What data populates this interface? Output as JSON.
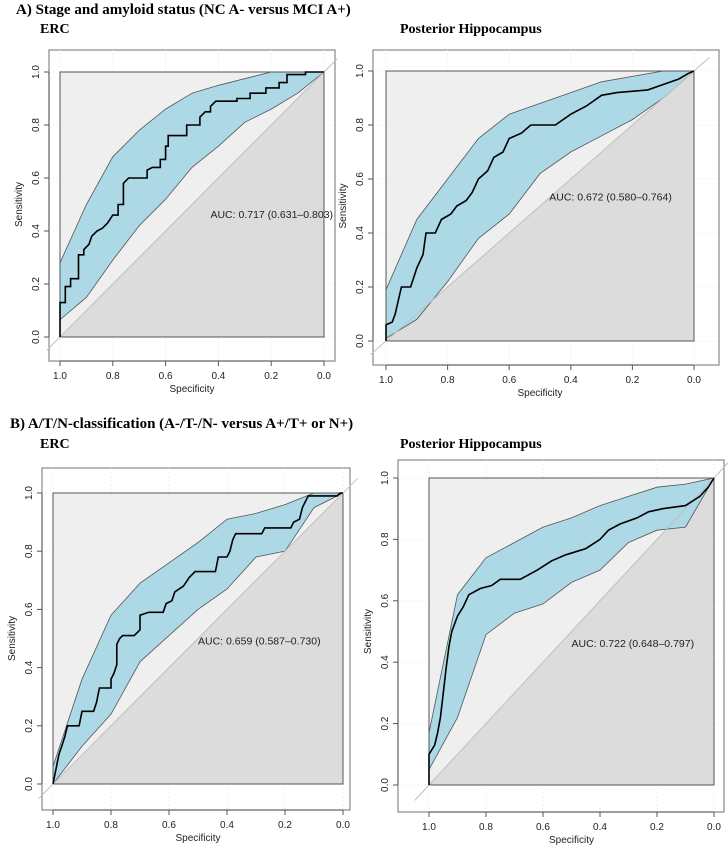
{
  "sections": [
    {
      "label": "A) Stage and amyloid status (NC A- versus MCI A+)"
    },
    {
      "label": "B) A/T/N-classification (A-/T-/N- versus A+/T+ or N+)"
    }
  ],
  "colors": {
    "ci_fill": "#add8e6",
    "upper_bg": "#efefef",
    "lower_bg": "#dcdcdc",
    "curve": "#000000",
    "diagonal": "#bfbfbf"
  },
  "chart_data": [
    {
      "type": "line",
      "section": 0,
      "title": "ERC",
      "xlabel": "Specificity",
      "ylabel": "Sensitivity",
      "xlim": [
        1.0,
        0.0
      ],
      "ylim": [
        0.0,
        1.0
      ],
      "xticks": [
        "1.0",
        "0.8",
        "0.6",
        "0.4",
        "0.2",
        "0.0"
      ],
      "yticks": [
        "0.0",
        "0.2",
        "0.4",
        "0.6",
        "0.8",
        "1.0"
      ],
      "annotation": "AUC: 0.717 (0.631–0.803)",
      "annotation_pos": [
        0.43,
        0.45
      ],
      "roc": [
        [
          1,
          0
        ],
        [
          1,
          0.13
        ],
        [
          0.98,
          0.13
        ],
        [
          0.98,
          0.19
        ],
        [
          0.96,
          0.19
        ],
        [
          0.96,
          0.22
        ],
        [
          0.93,
          0.22
        ],
        [
          0.93,
          0.31
        ],
        [
          0.91,
          0.31
        ],
        [
          0.91,
          0.33
        ],
        [
          0.89,
          0.35
        ],
        [
          0.88,
          0.38
        ],
        [
          0.86,
          0.4
        ],
        [
          0.84,
          0.41
        ],
        [
          0.82,
          0.43
        ],
        [
          0.8,
          0.46
        ],
        [
          0.78,
          0.46
        ],
        [
          0.78,
          0.5
        ],
        [
          0.76,
          0.5
        ],
        [
          0.76,
          0.58
        ],
        [
          0.74,
          0.6
        ],
        [
          0.67,
          0.6
        ],
        [
          0.67,
          0.63
        ],
        [
          0.65,
          0.64
        ],
        [
          0.62,
          0.64
        ],
        [
          0.62,
          0.67
        ],
        [
          0.6,
          0.67
        ],
        [
          0.6,
          0.72
        ],
        [
          0.59,
          0.72
        ],
        [
          0.59,
          0.76
        ],
        [
          0.52,
          0.76
        ],
        [
          0.52,
          0.8
        ],
        [
          0.47,
          0.8
        ],
        [
          0.47,
          0.83
        ],
        [
          0.45,
          0.85
        ],
        [
          0.43,
          0.85
        ],
        [
          0.43,
          0.87
        ],
        [
          0.41,
          0.89
        ],
        [
          0.33,
          0.89
        ],
        [
          0.33,
          0.9
        ],
        [
          0.28,
          0.9
        ],
        [
          0.28,
          0.92
        ],
        [
          0.22,
          0.92
        ],
        [
          0.22,
          0.94
        ],
        [
          0.17,
          0.94
        ],
        [
          0.17,
          0.96
        ],
        [
          0.14,
          0.96
        ],
        [
          0.14,
          0.99
        ],
        [
          0.07,
          0.99
        ],
        [
          0.07,
          1
        ],
        [
          0,
          1
        ]
      ],
      "ci_upper": [
        [
          1,
          0.28
        ],
        [
          0.9,
          0.5
        ],
        [
          0.8,
          0.68
        ],
        [
          0.7,
          0.78
        ],
        [
          0.6,
          0.86
        ],
        [
          0.5,
          0.92
        ],
        [
          0.4,
          0.95
        ],
        [
          0.2,
          1
        ],
        [
          0,
          1
        ]
      ],
      "ci_lower": [
        [
          1,
          0.065
        ],
        [
          0.9,
          0.15
        ],
        [
          0.8,
          0.29
        ],
        [
          0.7,
          0.42
        ],
        [
          0.6,
          0.52
        ],
        [
          0.5,
          0.64
        ],
        [
          0.4,
          0.72
        ],
        [
          0.3,
          0.81
        ],
        [
          0.2,
          0.86
        ],
        [
          0.1,
          0.92
        ],
        [
          0,
          1
        ]
      ]
    },
    {
      "type": "line",
      "section": 0,
      "title": "Posterior Hippocampus",
      "xlabel": "Specificity",
      "ylabel": "Sensitivity",
      "xlim": [
        1.0,
        0.0
      ],
      "ylim": [
        0.0,
        1.0
      ],
      "xticks": [
        "1.0",
        "0.8",
        "0.6",
        "0.4",
        "0.2",
        "0.0"
      ],
      "yticks": [
        "0.0",
        "0.2",
        "0.4",
        "0.6",
        "0.8",
        "1.0"
      ],
      "annotation": "AUC: 0.672 (0.580–0.764)",
      "annotation_pos": [
        0.47,
        0.52
      ],
      "roc": [
        [
          1,
          0
        ],
        [
          1,
          0.06
        ],
        [
          0.98,
          0.07
        ],
        [
          0.97,
          0.1
        ],
        [
          0.95,
          0.2
        ],
        [
          0.92,
          0.2
        ],
        [
          0.9,
          0.27
        ],
        [
          0.88,
          0.32
        ],
        [
          0.87,
          0.4
        ],
        [
          0.84,
          0.4
        ],
        [
          0.82,
          0.45
        ],
        [
          0.79,
          0.47
        ],
        [
          0.77,
          0.5
        ],
        [
          0.74,
          0.52
        ],
        [
          0.72,
          0.55
        ],
        [
          0.7,
          0.6
        ],
        [
          0.67,
          0.63
        ],
        [
          0.65,
          0.68
        ],
        [
          0.62,
          0.7
        ],
        [
          0.6,
          0.75
        ],
        [
          0.56,
          0.77
        ],
        [
          0.53,
          0.8
        ],
        [
          0.45,
          0.8
        ],
        [
          0.4,
          0.84
        ],
        [
          0.35,
          0.87
        ],
        [
          0.3,
          0.91
        ],
        [
          0.25,
          0.92
        ],
        [
          0.15,
          0.93
        ],
        [
          0.1,
          0.95
        ],
        [
          0.05,
          0.97
        ],
        [
          0.02,
          0.99
        ],
        [
          0,
          1
        ]
      ],
      "ci_upper": [
        [
          1,
          0.19
        ],
        [
          0.9,
          0.45
        ],
        [
          0.8,
          0.6
        ],
        [
          0.7,
          0.75
        ],
        [
          0.6,
          0.84
        ],
        [
          0.5,
          0.88
        ],
        [
          0.4,
          0.92
        ],
        [
          0.3,
          0.96
        ],
        [
          0.2,
          0.98
        ],
        [
          0.1,
          1
        ],
        [
          0,
          1
        ]
      ],
      "ci_lower": [
        [
          1,
          0.01
        ],
        [
          0.9,
          0.08
        ],
        [
          0.8,
          0.22
        ],
        [
          0.7,
          0.38
        ],
        [
          0.6,
          0.47
        ],
        [
          0.5,
          0.62
        ],
        [
          0.4,
          0.7
        ],
        [
          0.3,
          0.76
        ],
        [
          0.2,
          0.82
        ],
        [
          0.1,
          0.9
        ],
        [
          0,
          1
        ]
      ]
    },
    {
      "type": "line",
      "section": 1,
      "title": "ERC",
      "xlabel": "Specificity",
      "ylabel": "Sensitivity",
      "xlim": [
        1.0,
        0.0
      ],
      "ylim": [
        0.0,
        1.0
      ],
      "xticks": [
        "1.0",
        "0.8",
        "0.6",
        "0.4",
        "0.2",
        "0.0"
      ],
      "yticks": [
        "0.0",
        "0.2",
        "0.4",
        "0.6",
        "0.8",
        "1.0"
      ],
      "annotation": "AUC: 0.659 (0.587–0.730)",
      "annotation_pos": [
        0.5,
        0.48
      ],
      "roc": [
        [
          1,
          0
        ],
        [
          0.99,
          0.05
        ],
        [
          0.98,
          0.1
        ],
        [
          0.97,
          0.13
        ],
        [
          0.96,
          0.16
        ],
        [
          0.95,
          0.2
        ],
        [
          0.91,
          0.2
        ],
        [
          0.9,
          0.25
        ],
        [
          0.86,
          0.25
        ],
        [
          0.85,
          0.28
        ],
        [
          0.84,
          0.33
        ],
        [
          0.8,
          0.33
        ],
        [
          0.8,
          0.36
        ],
        [
          0.79,
          0.38
        ],
        [
          0.78,
          0.41
        ],
        [
          0.78,
          0.48
        ],
        [
          0.77,
          0.5
        ],
        [
          0.76,
          0.51
        ],
        [
          0.72,
          0.51
        ],
        [
          0.7,
          0.53
        ],
        [
          0.7,
          0.58
        ],
        [
          0.67,
          0.59
        ],
        [
          0.62,
          0.59
        ],
        [
          0.61,
          0.62
        ],
        [
          0.59,
          0.63
        ],
        [
          0.58,
          0.66
        ],
        [
          0.55,
          0.68
        ],
        [
          0.53,
          0.71
        ],
        [
          0.51,
          0.73
        ],
        [
          0.44,
          0.73
        ],
        [
          0.43,
          0.78
        ],
        [
          0.4,
          0.78
        ],
        [
          0.39,
          0.8
        ],
        [
          0.38,
          0.84
        ],
        [
          0.37,
          0.86
        ],
        [
          0.28,
          0.86
        ],
        [
          0.27,
          0.88
        ],
        [
          0.18,
          0.88
        ],
        [
          0.17,
          0.9
        ],
        [
          0.15,
          0.91
        ],
        [
          0.14,
          0.95
        ],
        [
          0.13,
          0.97
        ],
        [
          0.12,
          0.99
        ],
        [
          0.02,
          0.99
        ],
        [
          0.01,
          1
        ],
        [
          0,
          1
        ]
      ],
      "ci_upper": [
        [
          1,
          0.06
        ],
        [
          0.9,
          0.36
        ],
        [
          0.8,
          0.58
        ],
        [
          0.7,
          0.69
        ],
        [
          0.6,
          0.76
        ],
        [
          0.5,
          0.83
        ],
        [
          0.4,
          0.91
        ],
        [
          0.3,
          0.93
        ],
        [
          0.2,
          0.96
        ],
        [
          0.1,
          1
        ],
        [
          0,
          1
        ]
      ],
      "ci_lower": [
        [
          1,
          0
        ],
        [
          0.9,
          0.13
        ],
        [
          0.8,
          0.24
        ],
        [
          0.7,
          0.42
        ],
        [
          0.6,
          0.51
        ],
        [
          0.5,
          0.6
        ],
        [
          0.4,
          0.67
        ],
        [
          0.3,
          0.78
        ],
        [
          0.2,
          0.8
        ],
        [
          0.1,
          0.95
        ],
        [
          0,
          1
        ]
      ]
    },
    {
      "type": "line",
      "section": 1,
      "title": "Posterior Hippocampus",
      "xlabel": "Specificity",
      "ylabel": "Sensitivity",
      "xlim": [
        1.0,
        0.0
      ],
      "ylim": [
        0.0,
        1.0
      ],
      "xticks": [
        "1.0",
        "0.8",
        "0.6",
        "0.4",
        "0.2",
        "0.0"
      ],
      "yticks": [
        "0.0",
        "0.2",
        "0.4",
        "0.6",
        "0.8",
        "1.0"
      ],
      "annotation": "AUC: 0.722 (0.648–0.797)",
      "annotation_pos": [
        0.5,
        0.45
      ],
      "roc": [
        [
          1,
          0
        ],
        [
          1,
          0.1
        ],
        [
          0.98,
          0.13
        ],
        [
          0.97,
          0.17
        ],
        [
          0.96,
          0.22
        ],
        [
          0.95,
          0.3
        ],
        [
          0.94,
          0.38
        ],
        [
          0.93,
          0.45
        ],
        [
          0.92,
          0.5
        ],
        [
          0.9,
          0.55
        ],
        [
          0.88,
          0.58
        ],
        [
          0.86,
          0.62
        ],
        [
          0.82,
          0.64
        ],
        [
          0.78,
          0.65
        ],
        [
          0.75,
          0.67
        ],
        [
          0.68,
          0.67
        ],
        [
          0.62,
          0.7
        ],
        [
          0.57,
          0.73
        ],
        [
          0.52,
          0.75
        ],
        [
          0.45,
          0.77
        ],
        [
          0.4,
          0.8
        ],
        [
          0.37,
          0.83
        ],
        [
          0.33,
          0.85
        ],
        [
          0.27,
          0.87
        ],
        [
          0.23,
          0.89
        ],
        [
          0.18,
          0.9
        ],
        [
          0.1,
          0.91
        ],
        [
          0.05,
          0.94
        ],
        [
          0.02,
          0.97
        ],
        [
          0,
          1
        ]
      ],
      "ci_upper": [
        [
          1,
          0.17
        ],
        [
          0.9,
          0.62
        ],
        [
          0.8,
          0.74
        ],
        [
          0.7,
          0.79
        ],
        [
          0.6,
          0.84
        ],
        [
          0.5,
          0.87
        ],
        [
          0.4,
          0.91
        ],
        [
          0.3,
          0.94
        ],
        [
          0.2,
          0.97
        ],
        [
          0.1,
          0.98
        ],
        [
          0,
          1
        ]
      ],
      "ci_lower": [
        [
          1,
          0.05
        ],
        [
          0.9,
          0.22
        ],
        [
          0.8,
          0.49
        ],
        [
          0.7,
          0.56
        ],
        [
          0.6,
          0.59
        ],
        [
          0.5,
          0.66
        ],
        [
          0.4,
          0.7
        ],
        [
          0.3,
          0.79
        ],
        [
          0.2,
          0.83
        ],
        [
          0.1,
          0.84
        ],
        [
          0,
          1
        ]
      ]
    }
  ]
}
